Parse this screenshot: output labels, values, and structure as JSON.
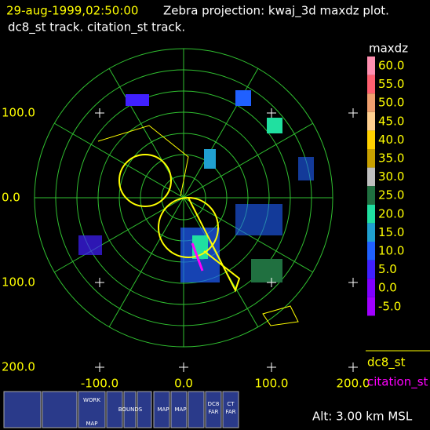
{
  "header": {
    "time": "29-aug-1999,02:50:00",
    "title": "Zebra projection: kwaj_3d maxdz plot.",
    "tracks": "dc8_st track.   citation_st track."
  },
  "axes": {
    "y_labels": [
      "100.0",
      "0.0",
      "100.0",
      "200.0"
    ],
    "x_labels": [
      "-100.0",
      "0.0",
      "100.0",
      "200.0"
    ]
  },
  "colorbar": {
    "title": "maxdz",
    "labels": [
      "60.0",
      "55.0",
      "50.0",
      "45.0",
      "40.0",
      "35.0",
      "30.0",
      "25.0",
      "20.0",
      "15.0",
      "10.0",
      "5.0",
      "0.0",
      "-5.0"
    ]
  },
  "legend": [
    "dc8_st",
    "citation_st"
  ],
  "icons": [
    "WORK",
    "MAP",
    "BOUNDS",
    "MAP",
    "MAP",
    "DC8",
    "FAR",
    "CT",
    "FAR"
  ],
  "status": "Alt: 3.00 km MSL"
}
